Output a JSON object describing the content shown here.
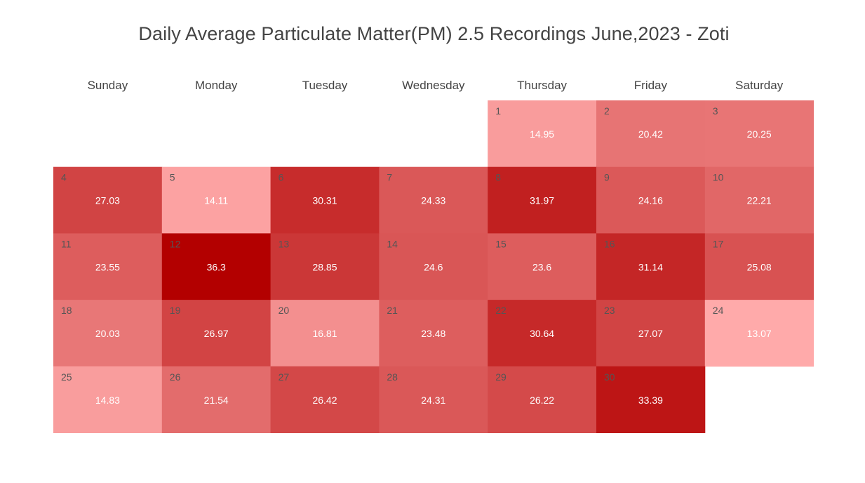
{
  "chart_data": {
    "type": "heatmap",
    "title": "Daily Average Particulate Matter(PM) 2.5 Recordings June,2023 - Zoti",
    "weekdays": [
      "Sunday",
      "Monday",
      "Tuesday",
      "Wednesday",
      "Thursday",
      "Friday",
      "Saturday"
    ],
    "first_weekday_index": 4,
    "color_scale": {
      "low_color": "#ffaaaa",
      "high_color": "#b30000"
    },
    "days": [
      {
        "day": 1,
        "value": 14.95
      },
      {
        "day": 2,
        "value": 20.42
      },
      {
        "day": 3,
        "value": 20.25
      },
      {
        "day": 4,
        "value": 27.03
      },
      {
        "day": 5,
        "value": 14.11
      },
      {
        "day": 6,
        "value": 30.31
      },
      {
        "day": 7,
        "value": 24.33
      },
      {
        "day": 8,
        "value": 31.97
      },
      {
        "day": 9,
        "value": 24.16
      },
      {
        "day": 10,
        "value": 22.21
      },
      {
        "day": 11,
        "value": 23.55
      },
      {
        "day": 12,
        "value": 36.3
      },
      {
        "day": 13,
        "value": 28.85
      },
      {
        "day": 14,
        "value": 24.6
      },
      {
        "day": 15,
        "value": 23.6
      },
      {
        "day": 16,
        "value": 31.14
      },
      {
        "day": 17,
        "value": 25.08
      },
      {
        "day": 18,
        "value": 20.03
      },
      {
        "day": 19,
        "value": 26.97
      },
      {
        "day": 20,
        "value": 16.81
      },
      {
        "day": 21,
        "value": 23.48
      },
      {
        "day": 22,
        "value": 30.64
      },
      {
        "day": 23,
        "value": 27.07
      },
      {
        "day": 24,
        "value": 13.07
      },
      {
        "day": 25,
        "value": 14.83
      },
      {
        "day": 26,
        "value": 21.54
      },
      {
        "day": 27,
        "value": 26.42
      },
      {
        "day": 28,
        "value": 24.31
      },
      {
        "day": 29,
        "value": 26.22
      },
      {
        "day": 30,
        "value": 33.39
      }
    ]
  }
}
